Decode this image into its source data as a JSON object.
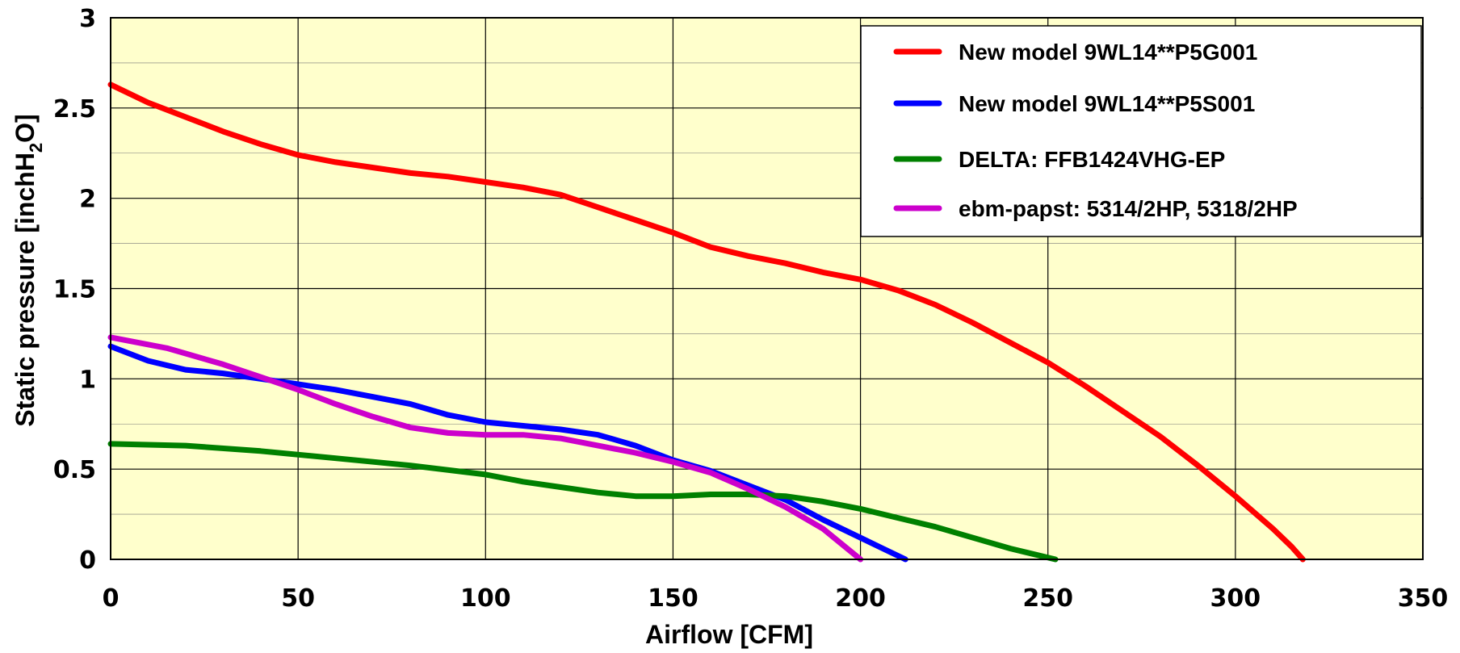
{
  "chart_data": {
    "type": "line",
    "xlabel": "Airflow [CFM]",
    "ylabel_main": "Static pressure [inchH",
    "ylabel_sub": "2",
    "ylabel_end": "O]",
    "xlim": [
      0,
      350
    ],
    "ylim": [
      0,
      3
    ],
    "xticks": [
      0,
      50,
      100,
      150,
      200,
      250,
      300,
      350
    ],
    "yticks": [
      0,
      0.5,
      1,
      1.5,
      2,
      2.5,
      3
    ],
    "xtick_labels": [
      "0",
      "50",
      "100",
      "150",
      "200",
      "250",
      "300",
      "350"
    ],
    "ytick_labels": [
      "0",
      "0.5",
      "1",
      "1.5",
      "2",
      "2.5",
      "3"
    ],
    "grid": true,
    "background": "#FFFFCC",
    "legend_position": "top-right",
    "series": [
      {
        "name": "New model 9WL14**P5G001",
        "color": "#FF0000",
        "points": [
          [
            0,
            2.63
          ],
          [
            10,
            2.53
          ],
          [
            20,
            2.45
          ],
          [
            30,
            2.37
          ],
          [
            40,
            2.3
          ],
          [
            50,
            2.24
          ],
          [
            60,
            2.2
          ],
          [
            70,
            2.17
          ],
          [
            80,
            2.14
          ],
          [
            90,
            2.12
          ],
          [
            100,
            2.09
          ],
          [
            110,
            2.06
          ],
          [
            120,
            2.02
          ],
          [
            130,
            1.95
          ],
          [
            140,
            1.88
          ],
          [
            150,
            1.81
          ],
          [
            160,
            1.73
          ],
          [
            170,
            1.68
          ],
          [
            180,
            1.64
          ],
          [
            190,
            1.59
          ],
          [
            200,
            1.55
          ],
          [
            210,
            1.49
          ],
          [
            220,
            1.41
          ],
          [
            230,
            1.31
          ],
          [
            240,
            1.2
          ],
          [
            250,
            1.09
          ],
          [
            260,
            0.96
          ],
          [
            270,
            0.82
          ],
          [
            280,
            0.68
          ],
          [
            290,
            0.52
          ],
          [
            300,
            0.35
          ],
          [
            310,
            0.17
          ],
          [
            315,
            0.07
          ],
          [
            318,
            0
          ]
        ]
      },
      {
        "name": "New model 9WL14**P5S001",
        "color": "#0000FF",
        "points": [
          [
            0,
            1.18
          ],
          [
            10,
            1.1
          ],
          [
            20,
            1.05
          ],
          [
            30,
            1.03
          ],
          [
            40,
            1.0
          ],
          [
            50,
            0.97
          ],
          [
            60,
            0.94
          ],
          [
            70,
            0.9
          ],
          [
            80,
            0.86
          ],
          [
            90,
            0.8
          ],
          [
            100,
            0.76
          ],
          [
            110,
            0.74
          ],
          [
            120,
            0.72
          ],
          [
            130,
            0.69
          ],
          [
            140,
            0.63
          ],
          [
            150,
            0.55
          ],
          [
            160,
            0.49
          ],
          [
            170,
            0.41
          ],
          [
            180,
            0.33
          ],
          [
            190,
            0.22
          ],
          [
            200,
            0.12
          ],
          [
            206,
            0.06
          ],
          [
            212,
            0
          ]
        ]
      },
      {
        "name": "DELTA: FFB1424VHG-EP",
        "color": "#008000",
        "points": [
          [
            0,
            0.64
          ],
          [
            20,
            0.63
          ],
          [
            40,
            0.6
          ],
          [
            60,
            0.56
          ],
          [
            80,
            0.52
          ],
          [
            100,
            0.47
          ],
          [
            110,
            0.43
          ],
          [
            120,
            0.4
          ],
          [
            130,
            0.37
          ],
          [
            140,
            0.35
          ],
          [
            150,
            0.35
          ],
          [
            160,
            0.36
          ],
          [
            170,
            0.36
          ],
          [
            180,
            0.35
          ],
          [
            190,
            0.32
          ],
          [
            200,
            0.28
          ],
          [
            210,
            0.23
          ],
          [
            220,
            0.18
          ],
          [
            230,
            0.12
          ],
          [
            240,
            0.06
          ],
          [
            252,
            0
          ]
        ]
      },
      {
        "name": "ebm-papst: 5314/2HP, 5318/2HP",
        "color": "#CC00CC",
        "points": [
          [
            0,
            1.23
          ],
          [
            15,
            1.17
          ],
          [
            30,
            1.08
          ],
          [
            40,
            1.01
          ],
          [
            50,
            0.94
          ],
          [
            60,
            0.86
          ],
          [
            70,
            0.79
          ],
          [
            80,
            0.73
          ],
          [
            90,
            0.7
          ],
          [
            100,
            0.69
          ],
          [
            110,
            0.69
          ],
          [
            120,
            0.67
          ],
          [
            130,
            0.63
          ],
          [
            140,
            0.59
          ],
          [
            150,
            0.54
          ],
          [
            160,
            0.48
          ],
          [
            170,
            0.39
          ],
          [
            180,
            0.29
          ],
          [
            190,
            0.17
          ],
          [
            200,
            0
          ]
        ]
      }
    ]
  }
}
